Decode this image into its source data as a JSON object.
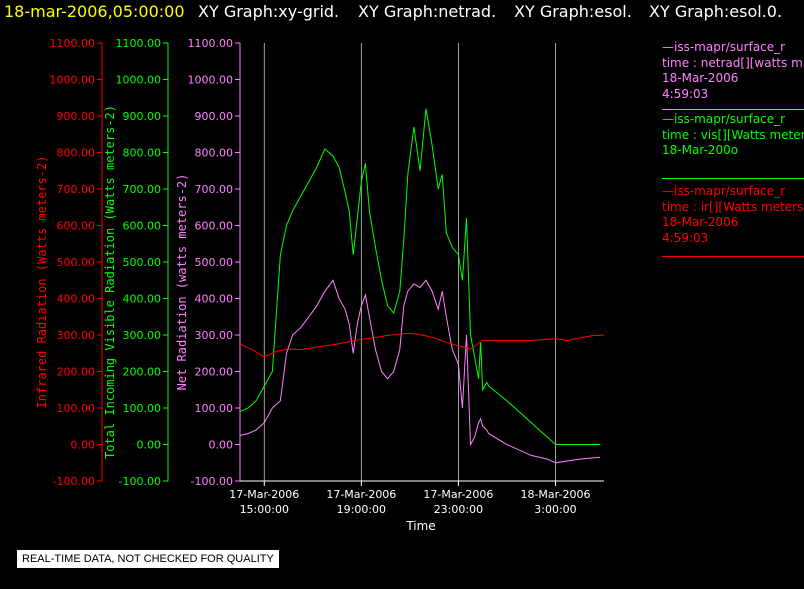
{
  "header": {
    "datetime": "18-mar-2006,05:00:00",
    "graphs": [
      "XY Graph:xy-grid.",
      "XY Graph:netrad.",
      "XY Graph:esol.",
      "XY Graph:esol.0."
    ]
  },
  "notice": "REAL-TIME DATA, NOT CHECKED FOR QUALITY",
  "legend": [
    {
      "lines": [
        "—iss-mapr/surface_r",
        "time : netrad[][watts m",
        "18-Mar-2006",
        "4:59:03"
      ],
      "color": "#ff80ff"
    },
    {
      "lines": [
        "—iss-mapr/surface_r",
        "time : vis[][Watts meter",
        "18-Mar-200o"
      ],
      "color": "#00ff00"
    },
    {
      "lines": [
        "—iss-mapr/surface_r",
        "time : ir[][Watts meters",
        "18-Mar-2006",
        "4:59:03"
      ],
      "color": "#ff0000"
    }
  ],
  "chart_data": {
    "type": "line",
    "xlabel": "Time",
    "x_ticks": [
      {
        "time": "2006-03-17T15:00",
        "line1": "17-Mar-2006",
        "line2": "15:00:00"
      },
      {
        "time": "2006-03-17T19:00",
        "line1": "17-Mar-2006",
        "line2": "19:00:00"
      },
      {
        "time": "2006-03-17T23:00",
        "line1": "17-Mar-2006",
        "line2": "23:00:00"
      },
      {
        "time": "2006-03-18T03:00",
        "line1": "18-Mar-2006",
        "line2": "3:00:00"
      }
    ],
    "xlim": [
      "2006-03-17T14:00",
      "2006-03-18T05:00"
    ],
    "axes": [
      {
        "label": "Infrared Radiation (Watts meters-2)",
        "color": "#ff0000",
        "ylim": [
          -100,
          1100
        ],
        "ticks": [
          "-100.00",
          "0.00",
          "100.00",
          "200.00",
          "300.00",
          "400.00",
          "500.00",
          "600.00",
          "700.00",
          "800.00",
          "900.00",
          "1000.00",
          "1100.00"
        ]
      },
      {
        "label": "Total Incoming Visible Radiation (Watts meters-2)",
        "color": "#00ff00",
        "ylim": [
          -100,
          1100
        ],
        "ticks": [
          "-100.00",
          "0.00",
          "100.00",
          "200.00",
          "300.00",
          "400.00",
          "500.00",
          "600.00",
          "700.00",
          "800.00",
          "900.00",
          "1000.00",
          "1100.00"
        ]
      },
      {
        "label": "Net Radiation (watts meters-2)",
        "color": "#ff80ff",
        "ylim": [
          -100,
          1100
        ],
        "ticks": [
          "-100.00",
          "0.00",
          "100.00",
          "200.00",
          "300.00",
          "400.00",
          "500.00",
          "600.00",
          "700.00",
          "800.00",
          "900.00",
          "1000.00",
          "1100.00"
        ]
      }
    ],
    "grid": "vertical",
    "series": [
      {
        "name": "vis",
        "color": "#00ff00",
        "x": [
          "2006-03-17T14:00",
          "2006-03-17T14:20",
          "2006-03-17T14:40",
          "2006-03-17T15:00",
          "2006-03-17T15:20",
          "2006-03-17T15:40",
          "2006-03-17T15:55",
          "2006-03-17T16:10",
          "2006-03-17T16:30",
          "2006-03-17T16:50",
          "2006-03-17T17:10",
          "2006-03-17T17:30",
          "2006-03-17T17:50",
          "2006-03-17T18:05",
          "2006-03-17T18:20",
          "2006-03-17T18:30",
          "2006-03-17T18:40",
          "2006-03-17T18:50",
          "2006-03-17T19:00",
          "2006-03-17T19:10",
          "2006-03-17T19:20",
          "2006-03-17T19:35",
          "2006-03-17T19:50",
          "2006-03-17T20:05",
          "2006-03-17T20:20",
          "2006-03-17T20:35",
          "2006-03-17T20:45",
          "2006-03-17T20:55",
          "2006-03-17T21:10",
          "2006-03-17T21:25",
          "2006-03-17T21:40",
          "2006-03-17T21:55",
          "2006-03-17T22:10",
          "2006-03-17T22:20",
          "2006-03-17T22:30",
          "2006-03-17T22:45",
          "2006-03-17T23:00",
          "2006-03-17T23:10",
          "2006-03-17T23:20",
          "2006-03-17T23:30",
          "2006-03-17T23:40",
          "2006-03-17T23:50",
          "2006-03-17T23:55",
          "2006-03-18T00:00",
          "2006-03-18T00:10",
          "2006-03-18T00:15",
          "2006-03-18T01:00",
          "2006-03-18T02:00",
          "2006-03-18T02:40",
          "2006-03-18T03:00",
          "2006-03-18T04:00",
          "2006-03-18T04:50"
        ],
        "y": [
          90,
          100,
          120,
          160,
          200,
          520,
          600,
          640,
          680,
          720,
          760,
          810,
          790,
          760,
          690,
          640,
          520,
          620,
          720,
          770,
          640,
          540,
          450,
          380,
          360,
          420,
          560,
          740,
          870,
          750,
          920,
          820,
          700,
          740,
          580,
          540,
          520,
          450,
          620,
          300,
          240,
          180,
          280,
          150,
          170,
          160,
          120,
          60,
          20,
          0,
          0,
          0
        ]
      },
      {
        "name": "netrad",
        "color": "#ff80ff",
        "x": [
          "2006-03-17T14:00",
          "2006-03-17T14:20",
          "2006-03-17T14:40",
          "2006-03-17T15:00",
          "2006-03-17T15:20",
          "2006-03-17T15:40",
          "2006-03-17T15:55",
          "2006-03-17T16:10",
          "2006-03-17T16:30",
          "2006-03-17T16:50",
          "2006-03-17T17:10",
          "2006-03-17T17:30",
          "2006-03-17T17:50",
          "2006-03-17T18:05",
          "2006-03-17T18:20",
          "2006-03-17T18:30",
          "2006-03-17T18:40",
          "2006-03-17T18:50",
          "2006-03-17T19:00",
          "2006-03-17T19:10",
          "2006-03-17T19:20",
          "2006-03-17T19:35",
          "2006-03-17T19:50",
          "2006-03-17T20:05",
          "2006-03-17T20:20",
          "2006-03-17T20:35",
          "2006-03-17T20:45",
          "2006-03-17T20:55",
          "2006-03-17T21:10",
          "2006-03-17T21:25",
          "2006-03-17T21:40",
          "2006-03-17T21:55",
          "2006-03-17T22:10",
          "2006-03-17T22:20",
          "2006-03-17T22:30",
          "2006-03-17T22:45",
          "2006-03-17T23:00",
          "2006-03-17T23:10",
          "2006-03-17T23:20",
          "2006-03-17T23:30",
          "2006-03-17T23:40",
          "2006-03-17T23:50",
          "2006-03-17T23:55",
          "2006-03-18T00:00",
          "2006-03-18T00:10",
          "2006-03-18T00:15",
          "2006-03-18T01:00",
          "2006-03-18T02:00",
          "2006-03-18T02:40",
          "2006-03-18T03:00",
          "2006-03-18T04:00",
          "2006-03-18T04:50"
        ],
        "y": [
          25,
          30,
          40,
          60,
          100,
          120,
          250,
          300,
          320,
          350,
          380,
          420,
          450,
          400,
          370,
          330,
          250,
          330,
          380,
          410,
          350,
          260,
          200,
          180,
          200,
          260,
          380,
          420,
          440,
          430,
          450,
          420,
          370,
          420,
          350,
          260,
          220,
          100,
          300,
          0,
          20,
          60,
          70,
          50,
          40,
          30,
          0,
          -30,
          -40,
          -50,
          -40,
          -35
        ]
      },
      {
        "name": "ir",
        "color": "#ff0000",
        "x": [
          "2006-03-17T14:00",
          "2006-03-17T14:30",
          "2006-03-17T15:00",
          "2006-03-17T15:30",
          "2006-03-17T16:00",
          "2006-03-17T16:30",
          "2006-03-17T17:00",
          "2006-03-17T17:30",
          "2006-03-17T18:00",
          "2006-03-17T18:30",
          "2006-03-17T19:00",
          "2006-03-17T19:30",
          "2006-03-17T20:00",
          "2006-03-17T20:30",
          "2006-03-17T21:00",
          "2006-03-17T21:30",
          "2006-03-17T22:00",
          "2006-03-17T22:30",
          "2006-03-17T23:00",
          "2006-03-17T23:30",
          "2006-03-18T00:00",
          "2006-03-18T01:00",
          "2006-03-18T02:00",
          "2006-03-18T03:00",
          "2006-03-18T03:30",
          "2006-03-18T04:00",
          "2006-03-18T04:30",
          "2006-03-18T05:00"
        ],
        "y": [
          275,
          260,
          240,
          255,
          262,
          260,
          265,
          270,
          275,
          282,
          288,
          292,
          298,
          302,
          305,
          300,
          292,
          280,
          270,
          262,
          285,
          285,
          285,
          290,
          285,
          292,
          298,
          300
        ]
      }
    ]
  }
}
